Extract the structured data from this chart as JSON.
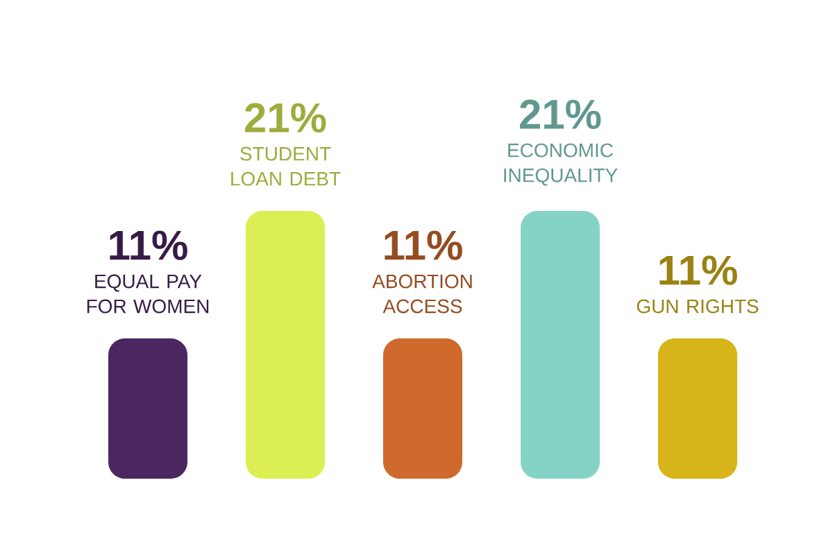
{
  "chart_data": {
    "type": "bar",
    "categories": [
      "EQUAL PAY FOR WOMEN",
      "STUDENT LOAN DEBT",
      "ABORTION ACCESS",
      "ECONOMIC INEQUALITY",
      "GUN RIGHTS"
    ],
    "values": [
      11,
      21,
      11,
      21,
      11
    ],
    "value_labels": [
      "11%",
      "21%",
      "11%",
      "21%",
      "11%"
    ],
    "colors": [
      "#4b2760",
      "#dbef55",
      "#cf6a2c",
      "#85d3c7",
      "#d6b41a"
    ]
  }
}
